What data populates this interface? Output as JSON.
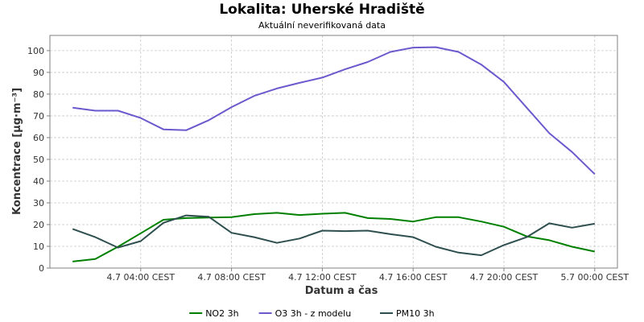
{
  "chart_data": {
    "type": "line",
    "title": "Lokalita: Uherské Hradiště",
    "subtitle": "Aktuální neverifikovaná data",
    "xlabel": "Datum a čas",
    "ylabel": "Koncentrace [µg·m⁻³]",
    "ylim": [
      0,
      107
    ],
    "yticks": [
      0,
      10,
      20,
      30,
      40,
      50,
      60,
      70,
      80,
      90,
      100
    ],
    "xlim": [
      0,
      25
    ],
    "xtick_positions": [
      4,
      8,
      12,
      16,
      20,
      24
    ],
    "xtick_labels": [
      "4.7 04:00 CEST",
      "4.7 08:00 CEST",
      "4.7 12:00 CEST",
      "4.7 16:00 CEST",
      "4.7 20:00 CEST",
      "5.7 00:00 CEST"
    ],
    "grid": true,
    "legend_position": "bottom",
    "x": [
      1,
      2,
      3,
      4,
      5,
      6,
      7,
      8,
      9,
      10,
      11,
      12,
      13,
      14,
      15,
      16,
      17,
      18,
      19,
      20,
      21,
      22,
      23,
      24
    ],
    "series": [
      {
        "name": "NO2 3h",
        "color": "#008000",
        "values": [
          3,
          4.2,
          9.8,
          16,
          22.2,
          23,
          23.2,
          23.4,
          24.8,
          25.4,
          24.4,
          25,
          25.4,
          23,
          22.6,
          21.4,
          23.4,
          23.4,
          21.4,
          19,
          14.6,
          12.8,
          9.8,
          7.6
        ]
      },
      {
        "name": "O3 3h - z modelu",
        "color": "#6a5acd",
        "values": [
          73.8,
          72.4,
          72.4,
          69,
          63.8,
          63.4,
          68,
          74,
          79.2,
          82.6,
          85.2,
          87.6,
          91.4,
          94.8,
          99.4,
          101.4,
          101.6,
          99.4,
          93.6,
          85.6,
          73.8,
          62,
          53.4,
          43.2
        ]
      },
      {
        "name": "PM10 3h",
        "color": "#2f4f4f",
        "values": [
          18,
          14.2,
          9.4,
          12.4,
          20.8,
          24.2,
          23.6,
          16.2,
          14.2,
          11.6,
          13.6,
          17.2,
          17,
          17.2,
          15.6,
          14.2,
          9.8,
          7.1,
          5.9,
          10.6,
          14.2,
          20.6,
          18.6,
          20.4
        ]
      }
    ]
  }
}
